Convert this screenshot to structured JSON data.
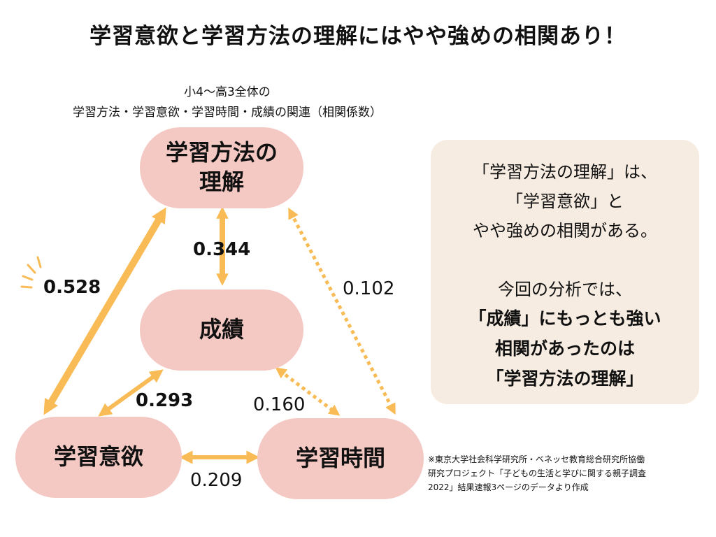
{
  "title": "学習意欲と学習方法の理解にはやや強めの相関あり！",
  "subtitle": {
    "line1": "小4〜高3全体の",
    "line2": "学習方法・学習意欲・学習時間・成績の関連（相関係数）"
  },
  "nodes": {
    "method": "学習方法の\n理解",
    "grades": "成績",
    "motivation": "学習意欲",
    "study_time": "学習時間"
  },
  "correlations": {
    "method_motivation": "0.528",
    "method_grades": "0.344",
    "method_time": "0.102",
    "grades_motivation": "0.293",
    "grades_time": "0.160",
    "motivation_time": "0.209"
  },
  "note": {
    "lines": [
      "「学習方法の理解」は、",
      "「学習意欲」と",
      "やや強めの相関がある。",
      "今回の分析では、",
      "「成績」にもっとも強い",
      "相関があったのは",
      "「学習方法の理解」"
    ]
  },
  "source": {
    "lines": [
      "※東京大学社会科学研究所・ベネッセ教育総合研究所協働",
      "研究プロジェクト「子どもの生活と学びに関する親子調査",
      "2022」結果速報3ページのデータより作成"
    ]
  },
  "colors": {
    "node_fill": "#f4c8c3",
    "arrow": "#f8bb55",
    "note_bg": "#f7ece1"
  }
}
